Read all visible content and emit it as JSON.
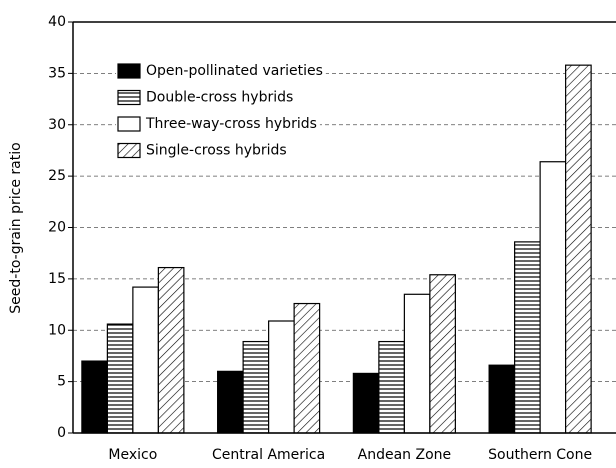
{
  "chart_data": {
    "type": "bar",
    "y_label": "Seed-to-grain price ratio",
    "categories": [
      "Mexico",
      "Central America",
      "Andean Zone",
      "Southern Cone"
    ],
    "series": [
      {
        "name": "Open-pollinated varieties",
        "color": "#000000",
        "pattern": "solid",
        "values": [
          7,
          6,
          5.8,
          6.6
        ]
      },
      {
        "name": "Double-cross hybrids",
        "color": "#000000",
        "pattern": "horizontal",
        "values": [
          10.6,
          8.9,
          8.9,
          18.6
        ]
      },
      {
        "name": "Three-way-cross hybrids",
        "color": "#000000",
        "pattern": "none",
        "values": [
          14.2,
          10.9,
          13.5,
          26.4
        ]
      },
      {
        "name": "Single-cross hybrids",
        "color": "#000000",
        "pattern": "diagonal",
        "values": [
          16.1,
          12.6,
          15.4,
          35.8
        ]
      }
    ],
    "ylim": [
      0,
      40
    ],
    "yticks": [
      0,
      5,
      10,
      15,
      20,
      25,
      30,
      35,
      40
    ],
    "grid": true,
    "legend": "top-left"
  }
}
